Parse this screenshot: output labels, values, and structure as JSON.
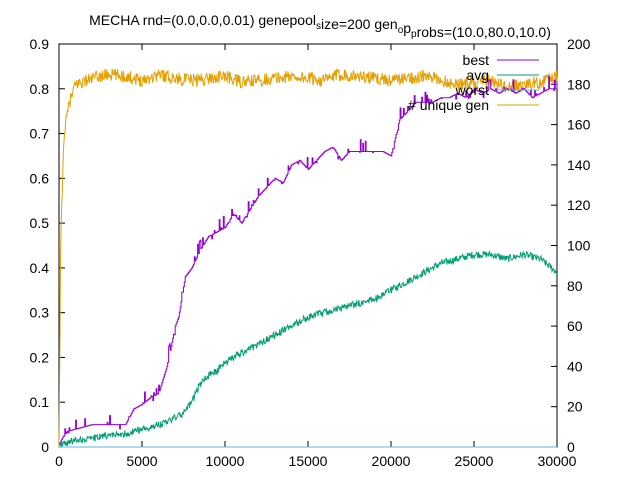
{
  "chart_data": {
    "type": "line",
    "title": "MECHA rnd=(0.0,0.0,0.01) genepool_size=200 gen_op_probs=(10.0,80.0,10.0)",
    "title_parts": [
      {
        "text": "MECHA rnd=(0.0,0.0,0.01) genepool",
        "sub": false
      },
      {
        "text": "s",
        "sub": true
      },
      {
        "text": "ize=200 gen",
        "sub": false
      },
      {
        "text": "o",
        "sub": true
      },
      {
        "text": "p",
        "sub": false
      },
      {
        "text": "p",
        "sub": true
      },
      {
        "text": "robs=(10.0,80.0,10.0)",
        "sub": false
      }
    ],
    "xlabel": "",
    "ylabel": "",
    "y2label": "",
    "xlim": [
      0,
      30000
    ],
    "ylim": [
      0,
      0.9
    ],
    "y2lim": [
      0,
      200
    ],
    "grid": false,
    "legend_position": "top-right",
    "x_ticks": [
      "0",
      "5000",
      "10000",
      "15000",
      "20000",
      "25000",
      "30000"
    ],
    "y_ticks": [
      "0",
      "0.1",
      "0.2",
      "0.3",
      "0.4",
      "0.5",
      "0.6",
      "0.7",
      "0.8",
      "0.9"
    ],
    "y2_ticks": [
      "0",
      "20",
      "40",
      "60",
      "80",
      "100",
      "120",
      "140",
      "160",
      "180",
      "200"
    ],
    "series": [
      {
        "name": "best",
        "color": "#9400d3",
        "axis": "y",
        "style": "step",
        "x": [
          0,
          200,
          500,
          1000,
          1500,
          2000,
          2500,
          3000,
          3500,
          4000,
          4500,
          5000,
          5500,
          6000,
          6500,
          7000,
          7200,
          7600,
          8000,
          8500,
          9000,
          9500,
          10000,
          10500,
          11000,
          11500,
          12000,
          12500,
          13000,
          13500,
          14000,
          14500,
          15000,
          15500,
          16000,
          16500,
          17000,
          17500,
          18000,
          18500,
          19000,
          19500,
          20000,
          20500,
          21000,
          21500,
          22000,
          22500,
          23000,
          23500,
          24000,
          24500,
          25000,
          25500,
          26000,
          26500,
          27000,
          27500,
          28000,
          28500,
          29000,
          29500,
          30000
        ],
        "values": [
          0.005,
          0.02,
          0.035,
          0.04,
          0.045,
          0.05,
          0.05,
          0.05,
          0.05,
          0.05,
          0.085,
          0.095,
          0.11,
          0.12,
          0.18,
          0.27,
          0.29,
          0.38,
          0.4,
          0.44,
          0.47,
          0.48,
          0.49,
          0.52,
          0.5,
          0.53,
          0.56,
          0.58,
          0.6,
          0.59,
          0.63,
          0.64,
          0.62,
          0.64,
          0.66,
          0.67,
          0.64,
          0.66,
          0.66,
          0.66,
          0.66,
          0.66,
          0.65,
          0.73,
          0.75,
          0.77,
          0.77,
          0.77,
          0.78,
          0.78,
          0.79,
          0.78,
          0.8,
          0.79,
          0.8,
          0.79,
          0.8,
          0.79,
          0.8,
          0.78,
          0.79,
          0.8,
          0.8
        ]
      },
      {
        "name": "avg",
        "color": "#009e73",
        "axis": "y",
        "style": "noisy",
        "x": [
          0,
          500,
          1000,
          2000,
          3000,
          4000,
          5000,
          6000,
          7000,
          7500,
          8000,
          8500,
          9000,
          9500,
          10000,
          11000,
          12000,
          13000,
          14000,
          15000,
          16000,
          17000,
          18000,
          19000,
          20000,
          21000,
          22000,
          23000,
          24000,
          25000,
          26000,
          27000,
          28000,
          29000,
          30000
        ],
        "values": [
          0.005,
          0.01,
          0.015,
          0.02,
          0.025,
          0.03,
          0.04,
          0.05,
          0.065,
          0.075,
          0.1,
          0.14,
          0.16,
          0.17,
          0.19,
          0.21,
          0.23,
          0.25,
          0.27,
          0.29,
          0.3,
          0.31,
          0.32,
          0.33,
          0.35,
          0.37,
          0.39,
          0.41,
          0.42,
          0.43,
          0.43,
          0.42,
          0.43,
          0.42,
          0.39
        ]
      },
      {
        "name": "worst",
        "color": "#56b4e9",
        "axis": "y",
        "style": "flat",
        "x": [
          0,
          30000
        ],
        "values": [
          0.0,
          0.0
        ]
      },
      {
        "name": "# unique gen",
        "color": "#e69f00",
        "axis": "y2",
        "style": "noisy",
        "x": [
          0,
          100,
          300,
          600,
          1000,
          2000,
          3000,
          4000,
          5000,
          6000,
          7000,
          8000,
          9000,
          10000,
          11000,
          12000,
          13000,
          14000,
          15000,
          16000,
          17000,
          18000,
          19000,
          20000,
          21000,
          22000,
          23000,
          24000,
          25000,
          26000,
          27000,
          28000,
          29000,
          30000
        ],
        "values": [
          0,
          100,
          155,
          170,
          180,
          183,
          185,
          184,
          182,
          185,
          183,
          182,
          183,
          184,
          181,
          182,
          183,
          184,
          183,
          182,
          185,
          184,
          183,
          182,
          183,
          184,
          182,
          180,
          181,
          182,
          178,
          180,
          181,
          184
        ]
      }
    ]
  }
}
